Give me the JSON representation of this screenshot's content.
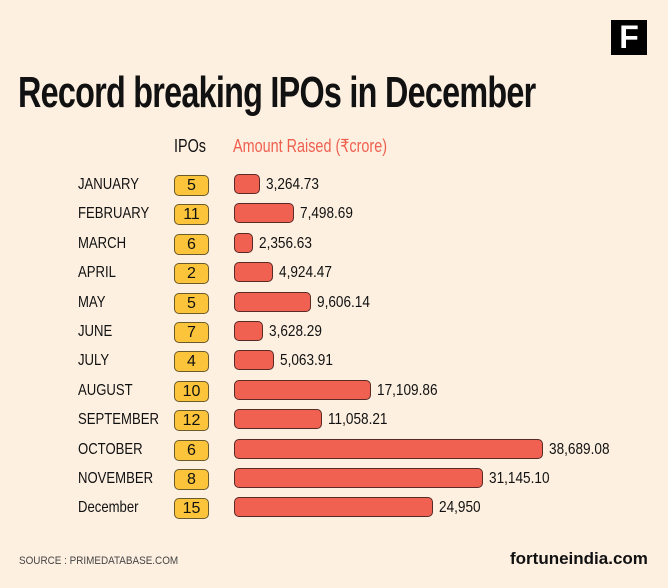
{
  "logo": "F",
  "chart_data": {
    "type": "bar",
    "title": "Record breaking IPOs in December",
    "orientation": "horizontal",
    "column_headers": {
      "ipos": "IPOs",
      "amount": "Amount Raised (₹crore)"
    },
    "categories": [
      "JANUARY",
      "FEBRUARY",
      "MARCH",
      "APRIL",
      "MAY",
      "JUNE",
      "JULY",
      "AUGUST",
      "SEPTEMBER",
      "OCTOBER",
      "NOVEMBER",
      "December"
    ],
    "ipos": [
      5,
      11,
      6,
      2,
      5,
      7,
      4,
      10,
      12,
      6,
      8,
      15
    ],
    "values": [
      3264.73,
      7498.69,
      2356.63,
      4924.47,
      9606.14,
      3628.29,
      5063.91,
      17109.86,
      11058.21,
      38689.08,
      31145.1,
      24950
    ],
    "value_labels": [
      "3,264.73",
      "7,498.69",
      "2,356.63",
      "4,924.47",
      "9,606.14",
      "3,628.29",
      "5,063.91",
      "17,109.86",
      "11,058.21",
      "38,689.08",
      "31,145.10",
      "24,950"
    ],
    "colors": {
      "bar": "#f06152",
      "badge": "#fbc43a",
      "header_amount": "#ef5f4f",
      "background": "#fdf0e1"
    }
  },
  "footer": {
    "source": "SOURCE : PRIMEDATABASE.COM",
    "site": "fortuneindia.com"
  }
}
